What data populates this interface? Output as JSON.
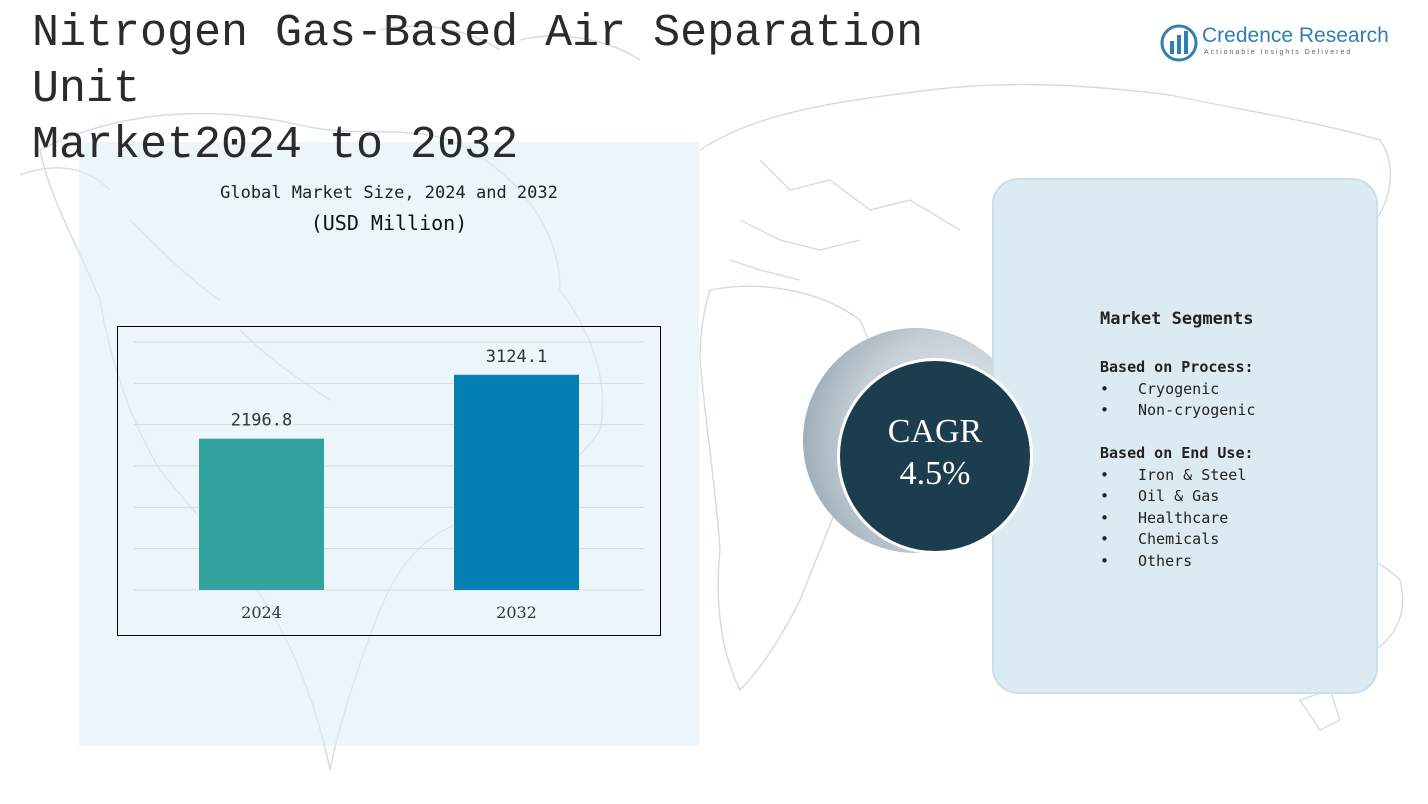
{
  "header": {
    "title_line1": "Nitrogen Gas-Based Air Separation Unit",
    "title_line2": "Market2024 to 2032"
  },
  "logo": {
    "name": "Credence Research",
    "tagline": "Actionable Insights Delivered",
    "icon": "bar-chart-logo-icon"
  },
  "chart_data": {
    "type": "bar",
    "title": "Global Market Size, 2024 and 2032",
    "ylabel": "(USD Million)",
    "xlabel": "",
    "categories": [
      "2024",
      "2032"
    ],
    "values": [
      2196.8,
      3124.1
    ],
    "value_labels": [
      "2196.8",
      "3124.1"
    ],
    "colors": [
      "#32a39f",
      "#0580b3"
    ],
    "ylim": [
      0,
      3600
    ],
    "grid": true,
    "legend": "none"
  },
  "cagr": {
    "label": "CAGR",
    "value": "4.5%"
  },
  "segments": {
    "title": "Market Segments",
    "groups": [
      {
        "heading": "Based on Process:",
        "items": [
          "Cryogenic",
          "Non-cryogenic"
        ]
      },
      {
        "heading": "Based on End Use:",
        "items": [
          "Iron & Steel",
          "Oil & Gas",
          "Healthcare",
          "Chemicals",
          "Others"
        ]
      }
    ]
  },
  "colors": {
    "accent_dark": "#1c3d4d",
    "panel": "#dcebf3",
    "logo_blue": "#2f7fb5"
  }
}
